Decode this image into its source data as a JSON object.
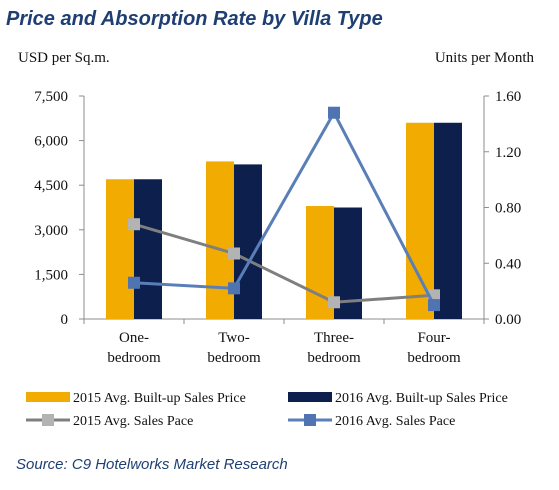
{
  "title": "Price and Absorption Rate by Villa Type",
  "source": "Source: C9 Hotelworks Market Research",
  "chart_data": {
    "type": "bar",
    "categories": [
      [
        "One-",
        "bedroom"
      ],
      [
        "Two-",
        "bedroom"
      ],
      [
        "Three-",
        "bedroom"
      ],
      [
        "Four-",
        "bedroom"
      ]
    ],
    "left_axis": {
      "label": "USD per Sq.m.",
      "ylim": [
        0,
        7500
      ],
      "ticks": [
        "0",
        "1,500",
        "3,000",
        "4,500",
        "6,000",
        "7,500"
      ],
      "tick_values": [
        0,
        1500,
        3000,
        4500,
        6000,
        7500
      ]
    },
    "right_axis": {
      "label": "Units per Month",
      "ylim": [
        0,
        1.6
      ],
      "ticks": [
        "0.00",
        "0.40",
        "0.80",
        "1.20",
        "1.60"
      ],
      "tick_values": [
        0,
        0.4,
        0.8,
        1.2,
        1.6
      ]
    },
    "bar_series": [
      {
        "name": "2015 Avg. Built-up Sales Price",
        "values": [
          4700,
          5300,
          3800,
          6600
        ],
        "color": "#f2ab00"
      },
      {
        "name": "2016 Avg. Built-up Sales Price",
        "values": [
          4700,
          5200,
          3750,
          6600
        ],
        "color": "#0d1f4d"
      }
    ],
    "line_series": [
      {
        "name": "2015 Avg. Sales Pace",
        "values": [
          0.68,
          0.47,
          0.12,
          0.17
        ],
        "color": "#7f7f7f",
        "marker_color": "#b3b3b3"
      },
      {
        "name": "2016 Avg. Sales Pace",
        "values": [
          0.26,
          0.22,
          1.48,
          0.1
        ],
        "color": "#5a7fb8",
        "marker_color": "#4f74b1"
      }
    ],
    "grid": false,
    "legend_position": "bottom"
  }
}
